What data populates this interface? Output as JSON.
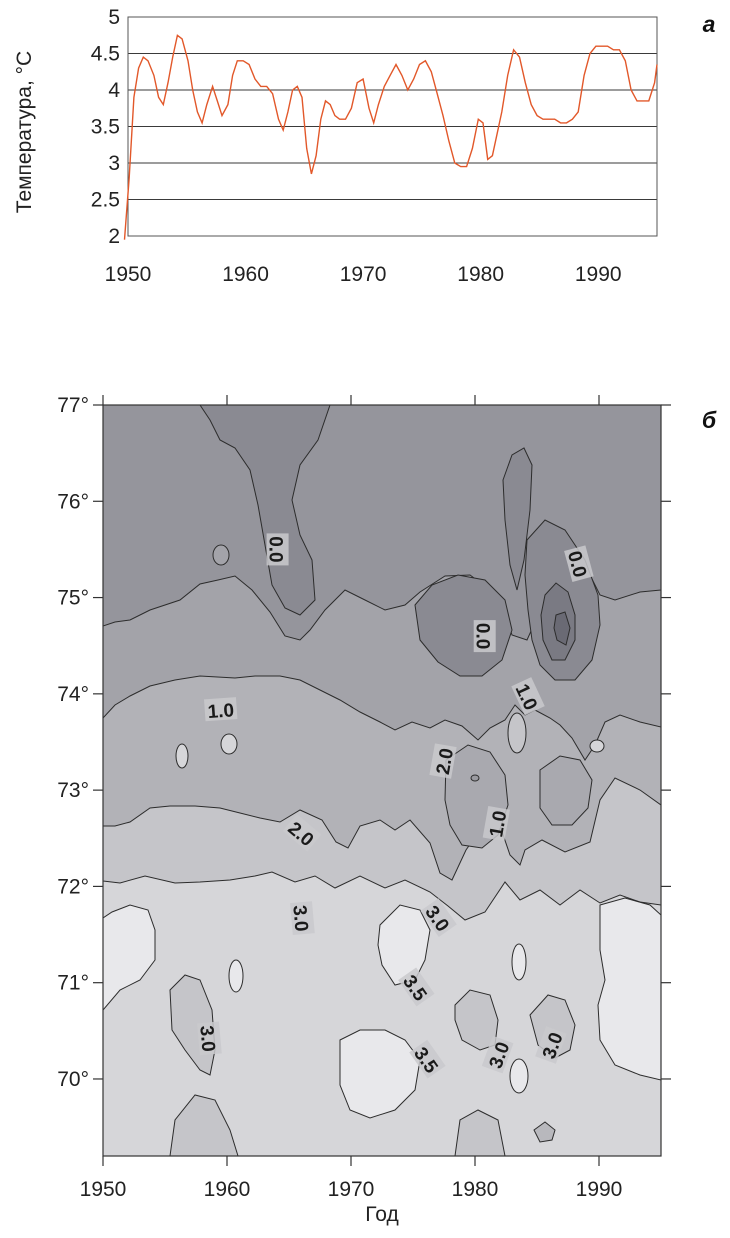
{
  "chart_data": [
    {
      "type": "line",
      "panel_label": "а",
      "ylabel": "Температура, °C",
      "xlabel": "",
      "xlim": [
        1950,
        1995
      ],
      "ylim": [
        2,
        5
      ],
      "x_ticks": [
        "1950",
        "1960",
        "1970",
        "1980",
        "1990"
      ],
      "y_ticks": [
        "2",
        "2.5",
        "3",
        "3.5",
        "4",
        "4.5",
        "5"
      ],
      "grid": "horizontal",
      "line_color": "#e2582a",
      "series": [
        {
          "x": [
            1949.7,
            1950.1,
            1950.5,
            1950.9,
            1951.3,
            1951.7,
            1952.2,
            1952.6,
            1953.0,
            1953.4,
            1953.8,
            1954.2,
            1954.6,
            1955.1,
            1955.5,
            1955.9,
            1956.3,
            1956.7,
            1957.2,
            1957.6,
            1958.0,
            1958.5,
            1958.9,
            1959.3,
            1959.8,
            1960.3,
            1960.8,
            1961.3,
            1961.8,
            1962.3,
            1962.8,
            1963.2,
            1963.6,
            1964.0,
            1964.4,
            1964.8,
            1965.2,
            1965.6,
            1966.0,
            1966.4,
            1966.8,
            1967.2,
            1967.6,
            1968.0,
            1968.5,
            1969.0,
            1969.5,
            1970.0,
            1970.5,
            1970.9,
            1971.3,
            1971.8,
            1972.3,
            1972.8,
            1973.3,
            1973.8,
            1974.3,
            1974.8,
            1975.3,
            1975.8,
            1976.3,
            1976.8,
            1977.3,
            1977.8,
            1978.3,
            1978.8,
            1979.3,
            1979.8,
            1980.2,
            1980.6,
            1981.0,
            1981.4,
            1981.8,
            1982.3,
            1982.8,
            1983.3,
            1983.8,
            1984.3,
            1984.8,
            1985.3,
            1985.8,
            1986.3,
            1986.8,
            1987.3,
            1987.8,
            1988.3,
            1988.8,
            1989.3,
            1989.8,
            1990.3,
            1990.8,
            1991.3,
            1991.8,
            1992.3,
            1992.8,
            1993.3,
            1993.8,
            1994.3,
            1994.8,
            1995.0
          ],
          "y": [
            1.95,
            2.8,
            3.9,
            4.3,
            4.45,
            4.4,
            4.2,
            3.9,
            3.8,
            4.1,
            4.45,
            4.75,
            4.7,
            4.4,
            4.0,
            3.7,
            3.55,
            3.8,
            4.05,
            3.85,
            3.65,
            3.8,
            4.2,
            4.4,
            4.4,
            4.35,
            4.15,
            4.05,
            4.05,
            3.95,
            3.6,
            3.45,
            3.7,
            4.0,
            4.05,
            3.9,
            3.2,
            2.85,
            3.1,
            3.6,
            3.85,
            3.8,
            3.65,
            3.6,
            3.6,
            3.75,
            4.1,
            4.15,
            3.75,
            3.55,
            3.8,
            4.05,
            4.2,
            4.35,
            4.2,
            4.0,
            4.15,
            4.35,
            4.4,
            4.25,
            3.95,
            3.65,
            3.3,
            3.0,
            2.95,
            2.95,
            3.2,
            3.6,
            3.55,
            3.05,
            3.1,
            3.4,
            3.7,
            4.2,
            4.55,
            4.45,
            4.1,
            3.8,
            3.65,
            3.6,
            3.6,
            3.6,
            3.55,
            3.55,
            3.6,
            3.7,
            4.2,
            4.5,
            4.6,
            4.6,
            4.6,
            4.55,
            4.55,
            4.4,
            4.0,
            3.85,
            3.85,
            3.85,
            4.1,
            4.35
          ]
        }
      ]
    },
    {
      "type": "heatmap",
      "subtype": "contour",
      "panel_label": "б",
      "xlabel": "Год",
      "ylabel": "",
      "xlim": [
        1950,
        1995
      ],
      "ylim": [
        69.2,
        77
      ],
      "x_ticks": [
        "1950",
        "1960",
        "1970",
        "1980",
        "1990"
      ],
      "y_ticks": [
        "70°",
        "71°",
        "72°",
        "73°",
        "74°",
        "75°",
        "76°",
        "77°"
      ],
      "contour_levels": [
        0.0,
        1.0,
        2.0,
        3.0,
        3.5
      ],
      "contour_labels": [
        {
          "text": "0.0",
          "year": 1964.0,
          "lat": 75.5,
          "angle": 90
        },
        {
          "text": "0.0",
          "year": 1980.7,
          "lat": 74.6,
          "angle": 90
        },
        {
          "text": "0.0",
          "year": 1988.3,
          "lat": 75.35,
          "angle": 75
        },
        {
          "text": "1.0",
          "year": 1959.5,
          "lat": 73.83,
          "angle": -4
        },
        {
          "text": "1.0",
          "year": 1984.2,
          "lat": 73.97,
          "angle": 65
        },
        {
          "text": "1.0",
          "year": 1981.8,
          "lat": 72.65,
          "angle": -80
        },
        {
          "text": "2.0",
          "year": 1977.5,
          "lat": 73.3,
          "angle": -80
        },
        {
          "text": "2.0",
          "year": 1966.0,
          "lat": 72.55,
          "angle": 40
        },
        {
          "text": "3.0",
          "year": 1966.0,
          "lat": 71.67,
          "angle": 85
        },
        {
          "text": "3.0",
          "year": 1977.0,
          "lat": 71.67,
          "angle": 55
        },
        {
          "text": "3.0",
          "year": 1958.5,
          "lat": 70.42,
          "angle": 85
        },
        {
          "text": "3.0",
          "year": 1981.9,
          "lat": 70.25,
          "angle": -70
        },
        {
          "text": "3.0",
          "year": 1986.2,
          "lat": 70.35,
          "angle": -70
        },
        {
          "text": "3.5",
          "year": 1975.2,
          "lat": 70.95,
          "angle": 55
        },
        {
          "text": "3.5",
          "year": 1976.1,
          "lat": 70.2,
          "angle": 55
        }
      ]
    }
  ]
}
